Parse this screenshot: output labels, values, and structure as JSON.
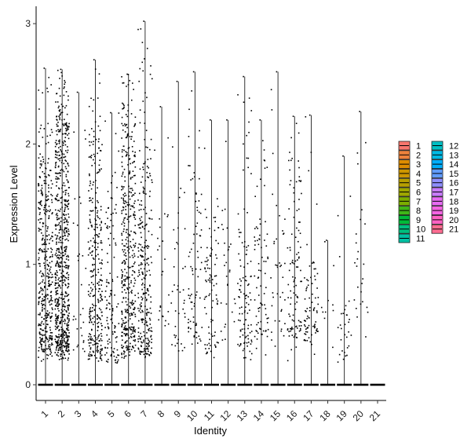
{
  "chart_data": {
    "type": "violin",
    "subtype": "violin-with-jitter",
    "xlabel": "Identity",
    "ylabel": "Expression Level",
    "categories": [
      "1",
      "2",
      "3",
      "4",
      "5",
      "6",
      "7",
      "8",
      "9",
      "10",
      "11",
      "12",
      "13",
      "14",
      "15",
      "16",
      "17",
      "18",
      "19",
      "20",
      "21"
    ],
    "yticks": [
      0,
      1,
      2,
      3
    ],
    "ylim": [
      0,
      3.02
    ],
    "max_values": [
      2.63,
      2.62,
      2.43,
      2.7,
      2.26,
      2.58,
      3.02,
      2.31,
      2.52,
      2.6,
      2.2,
      2.2,
      2.56,
      2.2,
      2.6,
      2.23,
      2.24,
      1.2,
      1.9,
      2.27,
      0.0
    ],
    "dense_ranges": [
      [
        0.3,
        1.9
      ],
      [
        0.3,
        2.3
      ],
      [
        0.3,
        1.6
      ],
      [
        0.25,
        2.1
      ],
      [
        0.2,
        1.6
      ],
      [
        0.3,
        2.3
      ],
      [
        0.25,
        1.9
      ],
      [
        0.4,
        1.5
      ],
      [
        0.3,
        1.6
      ],
      [
        0.4,
        1.9
      ],
      [
        0.3,
        1.5
      ],
      [
        0.4,
        1.6
      ],
      [
        0.3,
        1.2
      ],
      [
        0.4,
        1.4
      ],
      [
        0.4,
        1.7
      ],
      [
        0.4,
        1.9
      ],
      [
        0.4,
        1.0
      ],
      [
        0.5,
        0.8
      ],
      [
        0.2,
        0.6
      ],
      [
        0.6,
        1.9
      ],
      [
        0,
        0
      ]
    ],
    "point_counts": [
      420,
      700,
      30,
      320,
      120,
      420,
      280,
      25,
      40,
      80,
      90,
      30,
      110,
      80,
      40,
      110,
      80,
      10,
      30,
      25,
      0
    ],
    "legend": {
      "title": "",
      "position": "right",
      "entries": [
        {
          "label": "1",
          "color": "#F8766D"
        },
        {
          "label": "2",
          "color": "#EC823C"
        },
        {
          "label": "3",
          "color": "#DE8C00"
        },
        {
          "label": "4",
          "color": "#CD9600"
        },
        {
          "label": "5",
          "color": "#B79F00"
        },
        {
          "label": "6",
          "color": "#9EA700"
        },
        {
          "label": "7",
          "color": "#7CAE00"
        },
        {
          "label": "8",
          "color": "#3FB618"
        },
        {
          "label": "9",
          "color": "#00BA38"
        },
        {
          "label": "10",
          "color": "#00BF7D"
        },
        {
          "label": "11",
          "color": "#00C1A3"
        },
        {
          "label": "12",
          "color": "#00BFC4"
        },
        {
          "label": "13",
          "color": "#00B9E3"
        },
        {
          "label": "14",
          "color": "#00ADFA"
        },
        {
          "label": "15",
          "color": "#619CFF"
        },
        {
          "label": "16",
          "color": "#8F8FFF"
        },
        {
          "label": "17",
          "color": "#C77CFF"
        },
        {
          "label": "18",
          "color": "#E76BF3"
        },
        {
          "label": "19",
          "color": "#F564E3"
        },
        {
          "label": "20",
          "color": "#FF61C3"
        },
        {
          "label": "21",
          "color": "#FF6C91"
        }
      ]
    },
    "grid": false,
    "point_color": "#000000"
  }
}
